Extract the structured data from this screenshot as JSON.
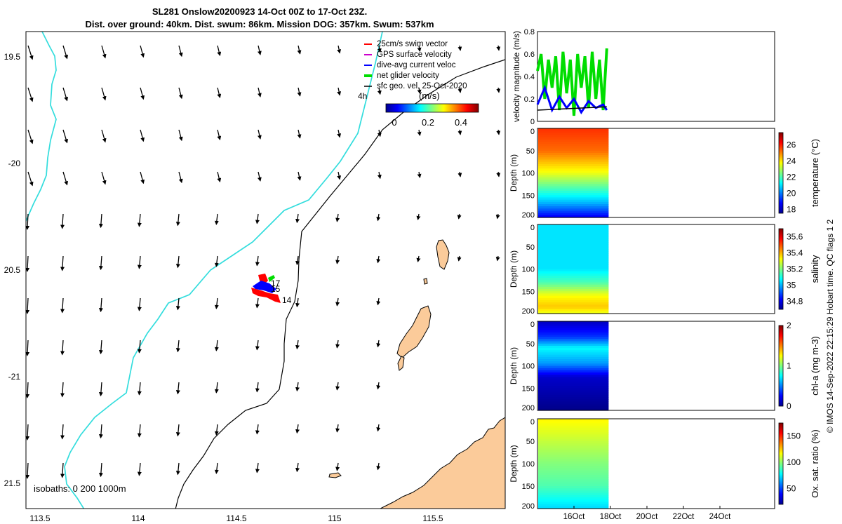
{
  "header": {
    "title_line1": "SL281 Onslow20200923 14-Oct 00Z to 17-Oct 23Z.",
    "title_line2": "Dist. over ground: 40km. Dist. swum: 86km. Mission DOG: 357km. Swum: 537km"
  },
  "map": {
    "lon_ticks": [
      "113.5",
      "114",
      "114.5",
      "115",
      "115.5"
    ],
    "lat_ticks": [
      "19.5",
      "-20",
      "20.5",
      "-21",
      "21.5"
    ],
    "legend": [
      {
        "label": "25cm/s swim vector",
        "color": "#ff0000"
      },
      {
        "label": "GPS surface velocity",
        "color": "#cc00cc"
      },
      {
        "label": "dive-avg current veloc",
        "color": "#0000ff"
      },
      {
        "label": "net glider velocity",
        "color": "#00dd00"
      },
      {
        "label": "sfc geo. vel. 25-Oct-2020",
        "color": "#000000"
      }
    ],
    "legend_4h": "4h",
    "colorbar_title": "(m/s)",
    "colorbar_ticks": [
      "0",
      "0.2",
      "0.4"
    ],
    "track_labels": [
      "17",
      "15",
      "14"
    ],
    "isobaths_label": "isobaths: 0   200  1000m",
    "colors": {
      "land": "#fbcb9a",
      "isobath_200": "#33dddd",
      "isobath_0": "#000000"
    }
  },
  "side_label": "© IMOS 14-Sep-2022 22:15:29 Hobart time. QC flags 1  2",
  "chart_data": [
    {
      "type": "line",
      "ylabel": "velocity magnitude (m/s)",
      "ylim": [
        0,
        0.8
      ],
      "y_ticks": [
        "0",
        "0.2",
        "0.4",
        "0.6",
        "0.8"
      ],
      "xlim_days": [
        14,
        27
      ],
      "series": [
        {
          "name": "net glider velocity",
          "color": "#00dd00",
          "x": [
            14.0,
            14.2,
            14.4,
            14.6,
            14.8,
            15.0,
            15.2,
            15.4,
            15.6,
            15.8,
            16.0,
            16.2,
            16.4,
            16.6,
            16.8,
            17.0,
            17.2,
            17.4,
            17.6,
            17.8
          ],
          "y": [
            0.45,
            0.6,
            0.2,
            0.55,
            0.3,
            0.58,
            0.1,
            0.62,
            0.25,
            0.55,
            0.05,
            0.6,
            0.3,
            0.58,
            0.12,
            0.62,
            0.2,
            0.55,
            0.1,
            0.65
          ]
        },
        {
          "name": "dive-avg current veloc",
          "color": "#0000ff",
          "x": [
            14.0,
            14.4,
            14.8,
            15.2,
            15.6,
            16.0,
            16.4,
            16.8,
            17.2,
            17.6,
            17.8
          ],
          "y": [
            0.15,
            0.3,
            0.1,
            0.22,
            0.12,
            0.2,
            0.08,
            0.18,
            0.12,
            0.15,
            0.1
          ]
        },
        {
          "name": "sfc geo. vel.",
          "color": "#000000",
          "x": [
            14.0,
            17.8
          ],
          "y": [
            0.1,
            0.13
          ]
        }
      ]
    },
    {
      "type": "heatmap",
      "ylabel": "Depth (m)",
      "colorbar_label": "temperature (°C)",
      "depth_range": [
        0,
        200
      ],
      "y_ticks": [
        "0",
        "50",
        "100",
        "150",
        "200"
      ],
      "clim": [
        17.5,
        27.5
      ],
      "cb_ticks": [
        "18",
        "20",
        "22",
        "24",
        "26"
      ],
      "profile": [
        {
          "depth": 0,
          "value": 25.8
        },
        {
          "depth": 50,
          "value": 25.2
        },
        {
          "depth": 100,
          "value": 23.6
        },
        {
          "depth": 130,
          "value": 22.2
        },
        {
          "depth": 170,
          "value": 20.4
        },
        {
          "depth": 200,
          "value": 18.6
        }
      ]
    },
    {
      "type": "heatmap",
      "ylabel": "Depth (m)",
      "colorbar_label": "salinity",
      "depth_range": [
        0,
        200
      ],
      "y_ticks": [
        "0",
        "50",
        "100",
        "150",
        "200"
      ],
      "clim": [
        34.7,
        35.7
      ],
      "cb_ticks": [
        "34.8",
        "35",
        "35.2",
        "35.4",
        "35.6"
      ],
      "profile": [
        {
          "depth": 0,
          "value": 35.05
        },
        {
          "depth": 100,
          "value": 35.05
        },
        {
          "depth": 130,
          "value": 35.15
        },
        {
          "depth": 160,
          "value": 35.32
        },
        {
          "depth": 185,
          "value": 35.38
        },
        {
          "depth": 200,
          "value": 35.3
        }
      ]
    },
    {
      "type": "heatmap",
      "ylabel": "Depth (m)",
      "colorbar_label": "chl-a (mg m-3)",
      "depth_range": [
        0,
        200
      ],
      "y_ticks": [
        "0",
        "50",
        "100",
        "150",
        "200"
      ],
      "clim": [
        0,
        2
      ],
      "cb_ticks": [
        "0",
        "1",
        "2"
      ],
      "profile": [
        {
          "depth": 0,
          "value": 0.12
        },
        {
          "depth": 35,
          "value": 0.35
        },
        {
          "depth": 60,
          "value": 0.75
        },
        {
          "depth": 95,
          "value": 0.55
        },
        {
          "depth": 125,
          "value": 0.15
        },
        {
          "depth": 200,
          "value": 0.02
        }
      ]
    },
    {
      "type": "heatmap",
      "ylabel": "Depth (m)",
      "colorbar_label": "Ox. sat. ratio (%)",
      "depth_range": [
        0,
        200
      ],
      "y_ticks": [
        "0",
        "50",
        "100",
        "150",
        "200"
      ],
      "x_ticks": [
        "16Oct",
        "18Oct",
        "20Oct",
        "22Oct",
        "24Oct"
      ],
      "clim": [
        20,
        175
      ],
      "cb_ticks": [
        "50",
        "100",
        "150"
      ],
      "profile": [
        {
          "depth": 0,
          "value": 118
        },
        {
          "depth": 50,
          "value": 108
        },
        {
          "depth": 100,
          "value": 98
        },
        {
          "depth": 150,
          "value": 90
        },
        {
          "depth": 200,
          "value": 72
        }
      ]
    }
  ]
}
